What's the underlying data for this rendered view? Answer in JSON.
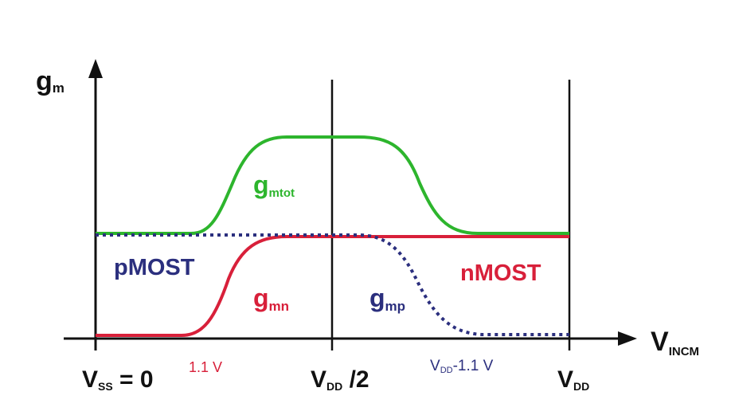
{
  "y_axis": {
    "label_main": "g",
    "label_sub": "m"
  },
  "x_axis": {
    "label_main": "V",
    "label_sub": "INCM"
  },
  "ticks": {
    "vss": {
      "main": "V",
      "sub": "SS",
      "tail": " = 0"
    },
    "v11": {
      "text": "1.1 V"
    },
    "vdd_half": {
      "main": "V",
      "sub": "DD",
      "tail": " /2"
    },
    "vdd_minus": {
      "main": "V",
      "sub": "DD",
      "tail": "-1.1 V"
    },
    "vdd": {
      "main": "V",
      "sub": "DD"
    }
  },
  "curves": {
    "gmtot": {
      "main": "g",
      "sub": "mtot",
      "color": "#2db52d"
    },
    "gmn": {
      "main": "g",
      "sub": "mn",
      "color": "#d8203a"
    },
    "gmp": {
      "main": "g",
      "sub": "mp",
      "color": "#2b2f7e"
    }
  },
  "region_labels": {
    "pmost": {
      "text": "pMOST",
      "color": "#2b2f7e"
    },
    "nmost": {
      "text": "nMOST",
      "color": "#d8203a"
    }
  }
}
